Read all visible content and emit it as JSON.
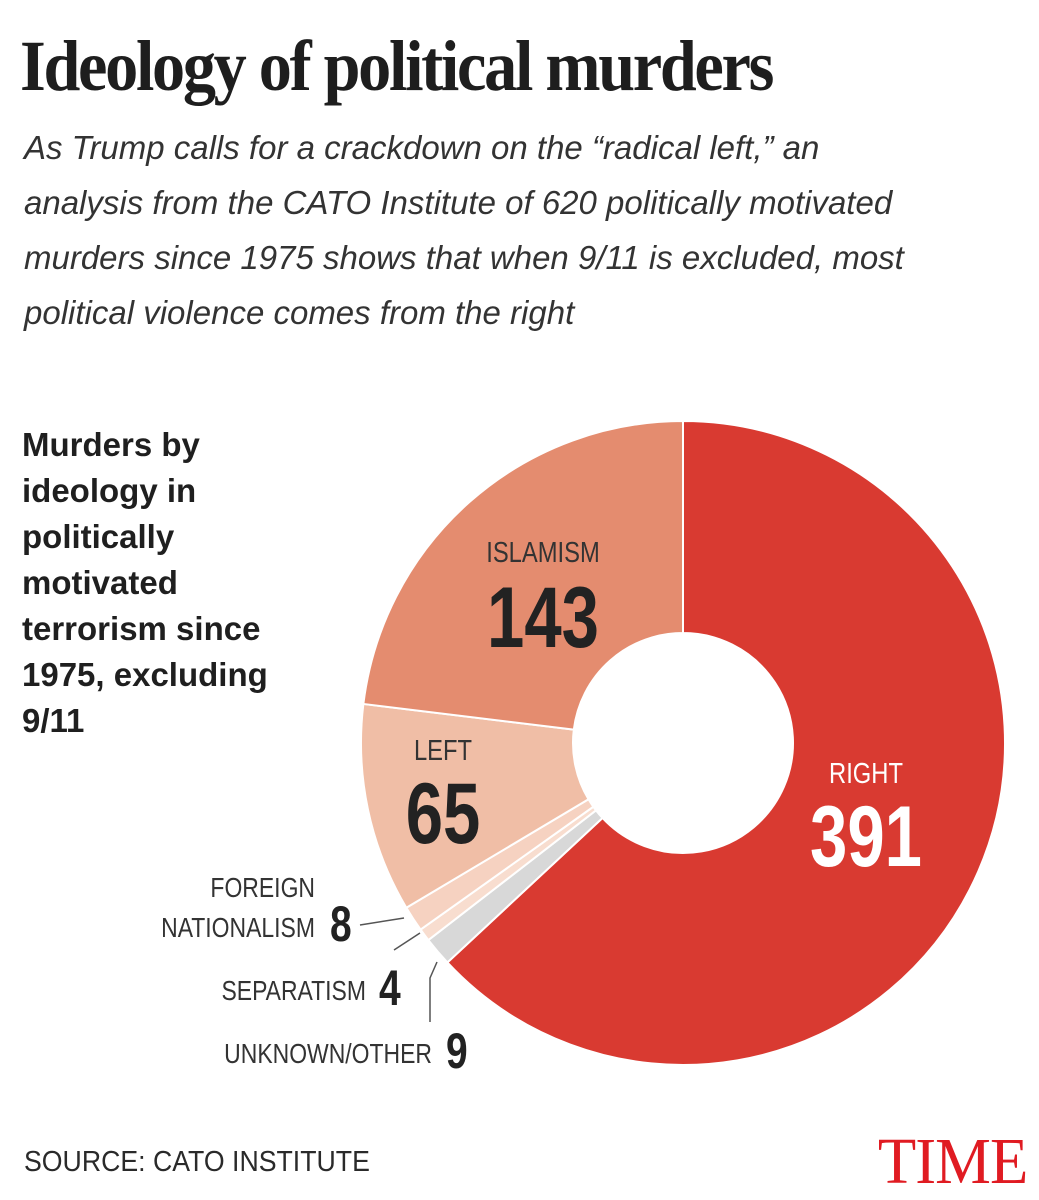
{
  "title": "Ideology of political murders",
  "subtitle": "As Trump calls for a crackdown on the “radical left,” an analysis from the CATO Institute of 620 politically motivated murders since 1975 shows that when 9/11 is excluded, most political violence comes from the right",
  "source": "SOURCE: CATO INSTITUTE",
  "brand": "TIME",
  "chart_data": {
    "type": "pie",
    "title": "Murders by ideology in politically motivated terrorism since 1975, excluding 9/11",
    "donut": true,
    "legend": "none",
    "slices": [
      {
        "label": "RIGHT",
        "value": 391,
        "color": "#d93a31"
      },
      {
        "label": "UNKNOWN/OTHER",
        "value": 9,
        "color": "#d8d8d8"
      },
      {
        "label": "SEPARATISM",
        "value": 4,
        "color": "#f8ddcf"
      },
      {
        "label": "FOREIGN NATIONALISM",
        "value": 8,
        "color": "#f6d2c1"
      },
      {
        "label": "LEFT",
        "value": 65,
        "color": "#f0bea6"
      },
      {
        "label": "ISLAMISM",
        "value": 143,
        "color": "#e48c6f"
      }
    ]
  }
}
